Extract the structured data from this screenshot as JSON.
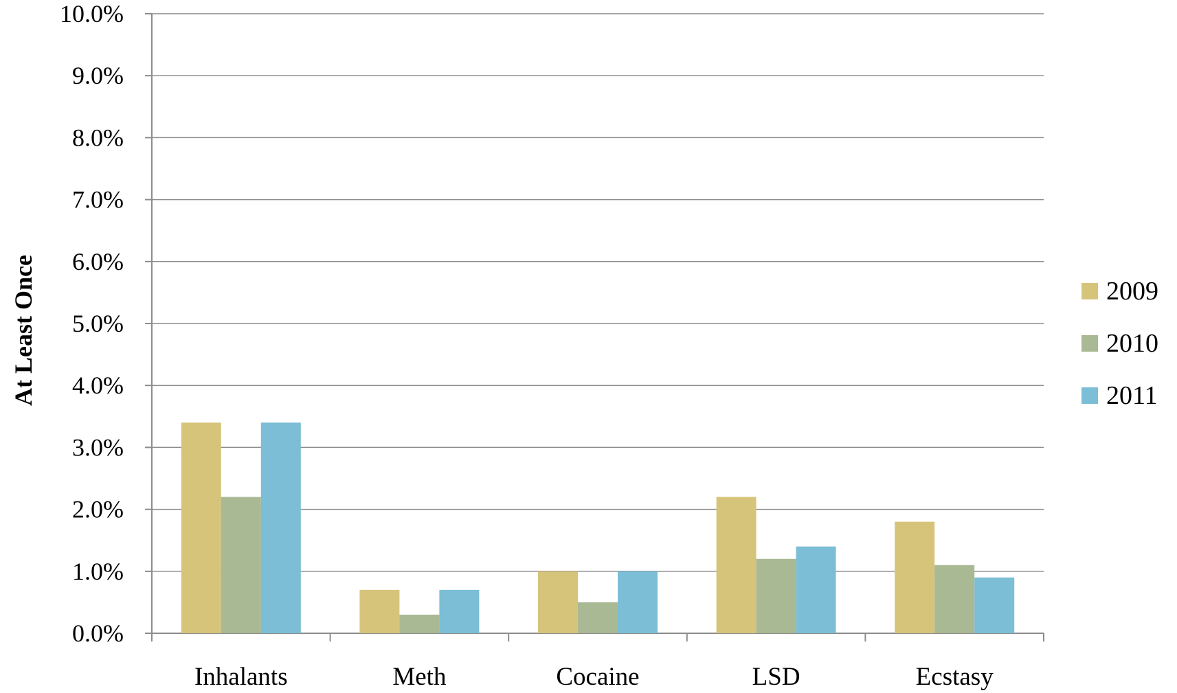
{
  "chart_data": {
    "type": "bar",
    "title": "",
    "xlabel": "",
    "ylabel": "At Least Once",
    "categories": [
      "Inhalants",
      "Meth",
      "Cocaine",
      "LSD",
      "Ecstasy"
    ],
    "series": [
      {
        "name": "2009",
        "color": "#D7C47B",
        "values": [
          3.4,
          0.7,
          1.0,
          2.2,
          1.8
        ]
      },
      {
        "name": "2010",
        "color": "#A9B994",
        "values": [
          2.2,
          0.3,
          0.5,
          1.2,
          1.1
        ]
      },
      {
        "name": "2011",
        "color": "#7BBED5",
        "values": [
          3.4,
          0.7,
          1.0,
          1.4,
          0.9
        ]
      }
    ],
    "ylim": [
      0,
      10
    ],
    "yticks": [
      0,
      1,
      2,
      3,
      4,
      5,
      6,
      7,
      8,
      9,
      10
    ],
    "ytick_labels": [
      "0.0%",
      "1.0%",
      "2.0%",
      "3.0%",
      "4.0%",
      "5.0%",
      "6.0%",
      "7.0%",
      "8.0%",
      "9.0%",
      "10.0%"
    ],
    "grid": true,
    "legend": "right"
  }
}
